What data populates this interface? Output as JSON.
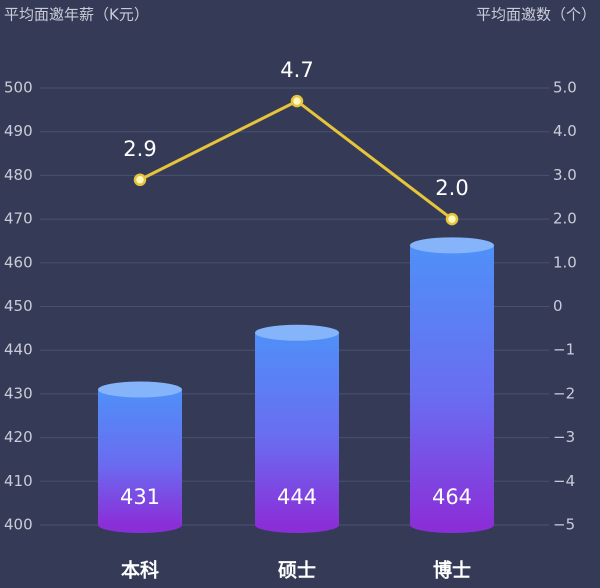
{
  "chart_data": {
    "type": "bar-line",
    "ylabel": "平均面邀年薪（K元）",
    "y2label": "平均面邀数（个）",
    "categories": [
      "本科",
      "硕士",
      "博士"
    ],
    "series": [
      {
        "type": "bar",
        "color": "#5b8af5",
        "values": [
          431,
          444,
          464
        ]
      },
      {
        "type": "line",
        "axis": "y2",
        "color": "#e6c53a",
        "values": [
          2.9,
          4.7,
          2.0
        ],
        "value_labels": [
          "2.9",
          "4.7",
          "2.0"
        ]
      }
    ],
    "ylim": [
      400,
      500
    ],
    "yticks": [
      400,
      410,
      420,
      430,
      440,
      450,
      460,
      470,
      480,
      490,
      500
    ],
    "y2lim": [
      -5,
      5
    ],
    "y2ticks": [
      {
        "value": -5,
        "label": "−5"
      },
      {
        "value": -4,
        "label": "−4"
      },
      {
        "value": -3,
        "label": "−3"
      },
      {
        "value": -2,
        "label": "−2"
      },
      {
        "value": -1,
        "label": "−1"
      },
      0,
      {
        "value": 1,
        "label": "1.0"
      },
      {
        "value": 2,
        "label": "2.0"
      },
      {
        "value": 3,
        "label": "3.0"
      },
      {
        "value": 4,
        "label": "4.0"
      },
      {
        "value": 5,
        "label": "5.0"
      }
    ],
    "grid": true
  }
}
